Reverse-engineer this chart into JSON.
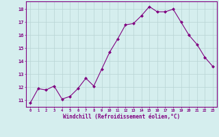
{
  "x": [
    0,
    1,
    2,
    3,
    4,
    5,
    6,
    7,
    8,
    9,
    10,
    11,
    12,
    13,
    14,
    15,
    16,
    17,
    18,
    19,
    20,
    21,
    22,
    23
  ],
  "y": [
    10.8,
    11.9,
    11.8,
    12.1,
    11.1,
    11.3,
    11.9,
    12.7,
    12.1,
    13.4,
    14.7,
    15.7,
    16.8,
    16.9,
    17.5,
    18.2,
    17.8,
    17.8,
    18.0,
    17.0,
    16.0,
    15.3,
    14.3,
    13.6
  ],
  "ylabel_ticks": [
    11,
    12,
    13,
    14,
    15,
    16,
    17,
    18
  ],
  "xlabel": "Windchill (Refroidissement éolien,°C)",
  "line_color": "#800080",
  "marker_color": "#800080",
  "bg_color": "#d5eeee",
  "grid_color": "#b8d4d4",
  "axis_color": "#800080",
  "tick_color": "#800080",
  "ylim": [
    10.5,
    18.6
  ],
  "xlim": [
    -0.5,
    23.5
  ]
}
